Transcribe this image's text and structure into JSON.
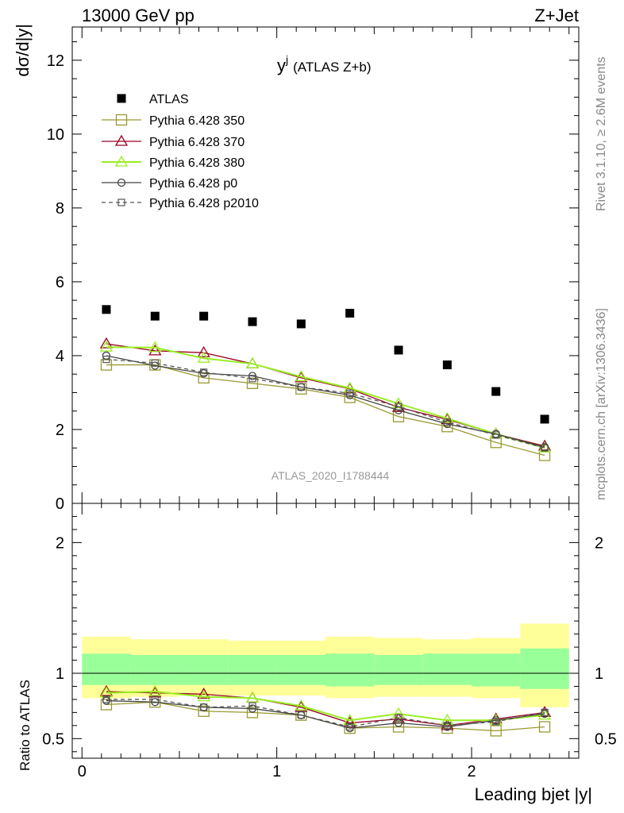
{
  "header": {
    "energy_label": "13000 GeV pp",
    "process_label": "Z+Jet"
  },
  "side_labels": {
    "rivet": "Rivet 3.1.10, ≥ 2.6M events",
    "mcplots": "mcplots.cern.ch [arXiv:1306.3436]"
  },
  "colors": {
    "atlas": "#000000",
    "p350": "#999933",
    "p370": "#990022",
    "p380": "#99ee22",
    "p0": "#444444",
    "p2010": "#555555",
    "band_inner": "#99ff99",
    "band_outer": "#ffff99"
  },
  "chart_data": [
    {
      "type": "scatter",
      "panel": "main",
      "title": "y",
      "title_superscript": "j",
      "title_suffix": "(ATLAS Z+b)",
      "analysis_label": "ATLAS_2020_I1788444",
      "ylabel": "dσ/d|y|",
      "xlim": [
        -0.05,
        2.55
      ],
      "ylim": [
        0,
        12.9
      ],
      "yticks": [
        0,
        2,
        4,
        6,
        8,
        10,
        12
      ],
      "bin_edges": [
        0,
        0.25,
        0.5,
        0.75,
        1.0,
        1.25,
        1.5,
        1.75,
        2.0,
        2.25,
        2.5
      ],
      "x": [
        0.125,
        0.375,
        0.625,
        0.875,
        1.125,
        1.375,
        1.625,
        1.875,
        2.125,
        2.375
      ],
      "series": [
        {
          "name": "ATLAS",
          "key": "atlas",
          "marker": "filled-square",
          "values": [
            5.25,
            5.07,
            5.07,
            4.92,
            4.86,
            5.15,
            4.15,
            3.75,
            3.03,
            2.28
          ]
        },
        {
          "name": "Pythia 6.428 350",
          "key": "p350",
          "marker": "open-square",
          "values": [
            3.75,
            3.75,
            3.4,
            3.25,
            3.1,
            2.87,
            2.35,
            2.08,
            1.65,
            1.3
          ]
        },
        {
          "name": "Pythia 6.428 370",
          "key": "p370",
          "marker": "open-triangle",
          "values": [
            4.32,
            4.13,
            4.08,
            3.78,
            3.4,
            3.1,
            2.6,
            2.27,
            1.88,
            1.55
          ]
        },
        {
          "name": "Pythia 6.428 380",
          "key": "p380",
          "marker": "open-triangle",
          "values": [
            4.23,
            4.22,
            3.93,
            3.78,
            3.43,
            3.12,
            2.7,
            2.3,
            1.88,
            1.5
          ]
        },
        {
          "name": "Pythia 6.428 p0",
          "key": "p0",
          "marker": "open-circle",
          "values": [
            4.0,
            3.73,
            3.52,
            3.45,
            3.15,
            2.93,
            2.52,
            2.15,
            1.88,
            1.52
          ]
        },
        {
          "name": "Pythia 6.428 p2010",
          "key": "p2010",
          "marker": "open-square-small",
          "dashed": true,
          "values": [
            3.9,
            3.8,
            3.55,
            3.38,
            3.15,
            2.98,
            2.62,
            2.2,
            1.85,
            1.5
          ]
        }
      ]
    },
    {
      "type": "line",
      "panel": "ratio",
      "ylabel": "Ratio to ATLAS",
      "xlabel": "Leading bjet |y|",
      "xlim": [
        -0.05,
        2.55
      ],
      "ylim": [
        0.35,
        2.3
      ],
      "yticks": [
        0.5,
        1,
        2
      ],
      "xticks": [
        0,
        1,
        2
      ],
      "bin_edges": [
        0,
        0.25,
        0.5,
        0.75,
        1.0,
        1.25,
        1.5,
        1.75,
        2.0,
        2.25,
        2.5
      ],
      "x": [
        0.125,
        0.375,
        0.625,
        0.875,
        1.125,
        1.375,
        1.625,
        1.875,
        2.125,
        2.375
      ],
      "band_inner": {
        "low": [
          0.91,
          0.91,
          0.91,
          0.91,
          0.91,
          0.9,
          0.91,
          0.91,
          0.9,
          0.88
        ],
        "high": [
          1.15,
          1.14,
          1.14,
          1.14,
          1.14,
          1.15,
          1.14,
          1.15,
          1.15,
          1.19
        ]
      },
      "band_outer": {
        "low": [
          0.81,
          0.82,
          0.83,
          0.83,
          0.83,
          0.81,
          0.82,
          0.82,
          0.81,
          0.74
        ],
        "high": [
          1.28,
          1.26,
          1.26,
          1.25,
          1.25,
          1.28,
          1.27,
          1.26,
          1.27,
          1.38
        ]
      },
      "series": [
        {
          "name": "Pythia 6.428 350",
          "key": "p350",
          "marker": "open-square",
          "values": [
            0.76,
            0.78,
            0.71,
            0.7,
            0.68,
            0.58,
            0.59,
            0.58,
            0.56,
            0.59
          ]
        },
        {
          "name": "Pythia 6.428 370",
          "key": "p370",
          "marker": "open-triangle",
          "values": [
            0.86,
            0.85,
            0.84,
            0.81,
            0.74,
            0.62,
            0.65,
            0.6,
            0.65,
            0.7
          ]
        },
        {
          "name": "Pythia 6.428 380",
          "key": "p380",
          "marker": "open-triangle",
          "values": [
            0.85,
            0.86,
            0.82,
            0.81,
            0.75,
            0.64,
            0.69,
            0.64,
            0.64,
            0.68
          ]
        },
        {
          "name": "Pythia 6.428 p0",
          "key": "p0",
          "marker": "open-circle",
          "values": [
            0.79,
            0.78,
            0.74,
            0.73,
            0.68,
            0.58,
            0.62,
            0.59,
            0.64,
            0.69
          ]
        },
        {
          "name": "Pythia 6.428 p2010",
          "key": "p2010",
          "marker": "open-square-small",
          "dashed": true,
          "values": [
            0.8,
            0.8,
            0.74,
            0.75,
            0.68,
            0.59,
            0.66,
            0.6,
            0.63,
            0.7
          ]
        }
      ]
    }
  ]
}
